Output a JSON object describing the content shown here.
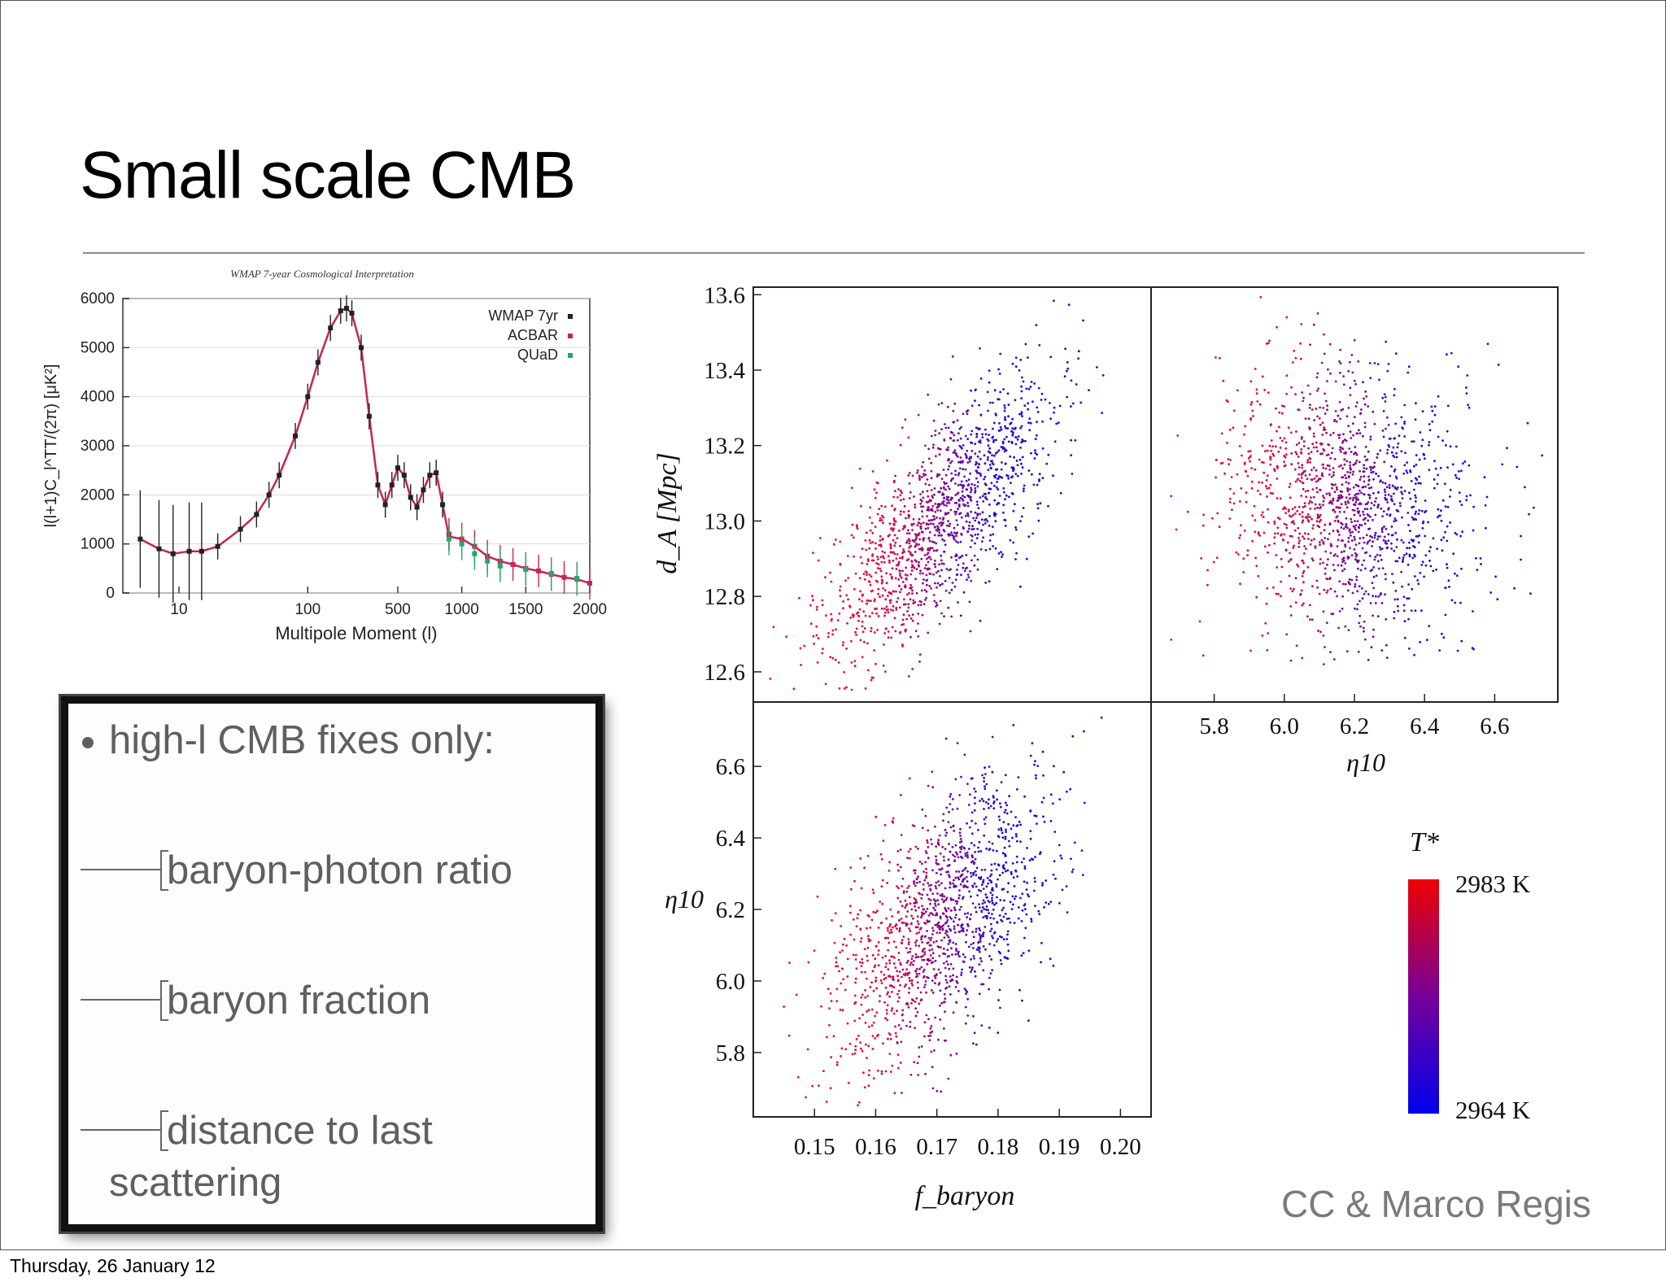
{
  "slide": {
    "title": "Small scale CMB",
    "credit": "CC & Marco Regis",
    "footer_date": "Thursday, 26 January 12"
  },
  "bullets": {
    "main": "high-l CMB fixes only:",
    "sub": [
      "baryon-photon ratio",
      "baryon fraction",
      "distance to last",
      "scattering"
    ]
  },
  "colors": {
    "red_end": "#ee0000",
    "blue_end": "#0000ee",
    "wmap_curve": "#cc2255"
  },
  "chart_data": [
    {
      "type": "line",
      "title": "WMAP 7-year Cosmological Interpretation",
      "xlabel": "Multipole Moment (l)",
      "ylabel": "l(l+1)C_l^TT/(2π) [μK²]",
      "xticks": [
        "10",
        "100",
        "500",
        "1000",
        "1500",
        "2000"
      ],
      "yticks": [
        "0",
        "1000",
        "2000",
        "3000",
        "4000",
        "5000",
        "6000"
      ],
      "ylim": [
        0,
        6000
      ],
      "legend": [
        "WMAP 7yr",
        "ACBAR",
        "QUaD"
      ],
      "legend_position": "top-right",
      "series": [
        {
          "name": "WMAP 7yr",
          "x": [
            5,
            7,
            9,
            12,
            15,
            20,
            30,
            40,
            50,
            60,
            80,
            100,
            120,
            150,
            180,
            200,
            220,
            260,
            300,
            350,
            400,
            450,
            500,
            550,
            600,
            650,
            700,
            750,
            800,
            850,
            900
          ],
          "y": [
            1100,
            900,
            800,
            850,
            850,
            950,
            1300,
            1600,
            2000,
            2400,
            3200,
            4000,
            4700,
            5400,
            5750,
            5800,
            5700,
            5000,
            3600,
            2200,
            1800,
            2200,
            2550,
            2400,
            1950,
            1750,
            2100,
            2400,
            2450,
            1800,
            1150
          ]
        },
        {
          "name": "ACBAR",
          "x": [
            900,
            1000,
            1100,
            1200,
            1300,
            1400,
            1500,
            1600,
            1700,
            1800,
            1900,
            2000
          ],
          "y": [
            1200,
            1100,
            950,
            750,
            650,
            580,
            500,
            450,
            380,
            320,
            280,
            200
          ]
        },
        {
          "name": "QUaD",
          "x": [
            900,
            1000,
            1100,
            1200,
            1300,
            1500,
            1700,
            1900
          ],
          "y": [
            1100,
            1000,
            800,
            650,
            550,
            480,
            400,
            300
          ]
        }
      ]
    },
    {
      "type": "scatter",
      "panel": "top-left",
      "xlabel": "",
      "ylabel": "d_A [Mpc]",
      "yticks": [
        "12.6",
        "12.8",
        "13.0",
        "13.2",
        "13.4",
        "13.6"
      ],
      "xlim": [
        0.14,
        0.205
      ],
      "ylim": [
        12.52,
        13.62
      ],
      "center": {
        "x": 0.17,
        "y": 12.93
      },
      "color_scale": "T* from 2964 K (blue) to 2983 K (red)"
    },
    {
      "type": "scatter",
      "panel": "top-right",
      "xlabel": "η10",
      "xticks": [
        "5.8",
        "6.0",
        "6.2",
        "6.4",
        "6.6"
      ],
      "xlim": [
        5.62,
        6.78
      ],
      "ylim": [
        12.52,
        13.62
      ],
      "center": {
        "x": 6.18,
        "y": 12.95
      }
    },
    {
      "type": "scatter",
      "panel": "bottom-left",
      "xlabel": "f_baryon",
      "ylabel": "η10",
      "xticks": [
        "0.15",
        "0.16",
        "0.17",
        "0.18",
        "0.19",
        "0.20"
      ],
      "yticks": [
        "5.8",
        "6.0",
        "6.2",
        "6.4",
        "6.6"
      ],
      "xlim": [
        0.14,
        0.205
      ],
      "ylim": [
        5.62,
        6.78
      ],
      "center": {
        "x": 0.17,
        "y": 6.18
      }
    },
    {
      "type": "heatmap",
      "panel": "colorbar",
      "label": "T*",
      "max_label": "2983 K",
      "min_label": "2964 K",
      "range": [
        2964,
        2983
      ]
    }
  ]
}
